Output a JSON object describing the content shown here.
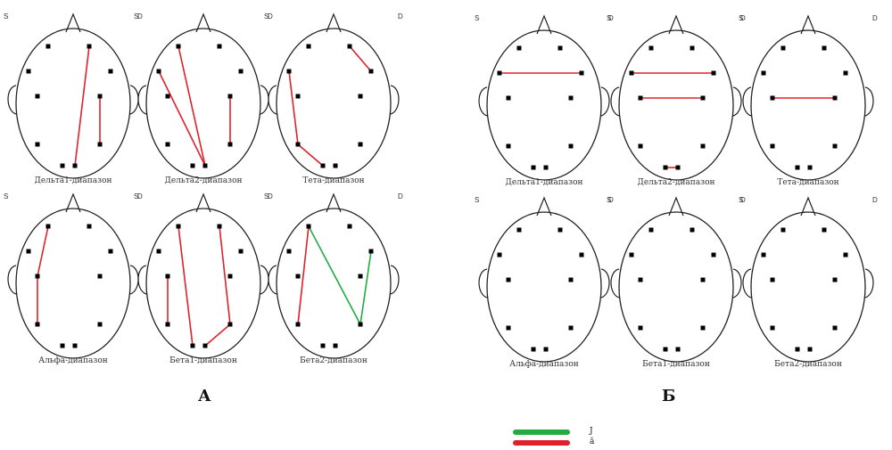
{
  "colors": {
    "red": "#e0202a",
    "green": "#22aa44",
    "outline": "#222222",
    "electrode": "#000000"
  },
  "side_labels": {
    "left": "S",
    "right": "D"
  },
  "panel_a": {
    "label": "А",
    "maps": [
      {
        "caption": "Дельта1-диапазон",
        "connections": [
          {
            "from": 1,
            "to": 9,
            "color": "red"
          },
          {
            "from": 5,
            "to": 7,
            "color": "red"
          }
        ]
      },
      {
        "caption": "Дельта2-диапазон",
        "connections": [
          {
            "from": 0,
            "to": 9,
            "color": "red"
          },
          {
            "from": 2,
            "to": 9,
            "color": "red"
          },
          {
            "from": 5,
            "to": 7,
            "color": "red"
          }
        ]
      },
      {
        "caption": "Тета-диапазон",
        "connections": [
          {
            "from": 1,
            "to": 3,
            "color": "red"
          },
          {
            "from": 2,
            "to": 6,
            "color": "red"
          },
          {
            "from": 6,
            "to": 8,
            "color": "red"
          }
        ]
      },
      {
        "caption": "Альфа-диапазон",
        "connections": [
          {
            "from": 4,
            "to": 0,
            "color": "red"
          },
          {
            "from": 4,
            "to": 6,
            "color": "red"
          }
        ]
      },
      {
        "caption": "Бета1-диапазон",
        "connections": [
          {
            "from": 0,
            "to": 8,
            "color": "red"
          },
          {
            "from": 1,
            "to": 7,
            "color": "red"
          },
          {
            "from": 7,
            "to": 9,
            "color": "red"
          },
          {
            "from": 4,
            "to": 6,
            "color": "red"
          }
        ]
      },
      {
        "caption": "Бета2-диапазон",
        "connections": [
          {
            "from": 0,
            "to": 6,
            "color": "red"
          },
          {
            "from": 0,
            "to": 7,
            "color": "green"
          },
          {
            "from": 7,
            "to": 3,
            "color": "green"
          }
        ]
      }
    ]
  },
  "panel_b": {
    "label": "Б",
    "maps": [
      {
        "caption": "Дельта1-диапазон",
        "connections": [
          {
            "from": 2,
            "to": 3,
            "color": "red"
          }
        ]
      },
      {
        "caption": "Дельта2-диапазон",
        "connections": [
          {
            "from": 2,
            "to": 3,
            "color": "red"
          },
          {
            "from": 4,
            "to": 5,
            "color": "red"
          },
          {
            "from": 8,
            "to": 9,
            "color": "red"
          }
        ]
      },
      {
        "caption": "Тета-диапазон",
        "connections": [
          {
            "from": 4,
            "to": 5,
            "color": "red"
          }
        ]
      },
      {
        "caption": "Альфа-диапазон",
        "connections": []
      },
      {
        "caption": "Бета1-диапазон",
        "connections": []
      },
      {
        "caption": "Бета2-диапазон",
        "connections": []
      }
    ]
  },
  "legend": [
    {
      "color": "green",
      "text": "Ј"
    },
    {
      "color": "red",
      "text": "ǎ"
    }
  ]
}
